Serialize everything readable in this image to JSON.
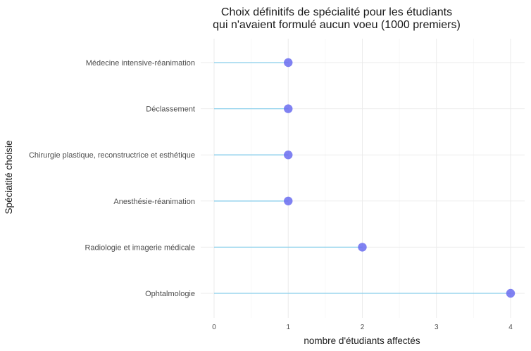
{
  "chart_data": {
    "type": "lollipop",
    "title_line1": "Choix définitifs de spécialité pour les étudiants",
    "title_line2": "qui n'avaient formulé aucun voeu (1000 premiers)",
    "xlabel": "nombre d'étudiants affectés",
    "ylabel": "Spéciatité choisie",
    "xlim": [
      0,
      4
    ],
    "x_ticks": [
      "0",
      "1",
      "2",
      "3",
      "4"
    ],
    "grid": true,
    "categories": [
      "Médecine intensive-réanimation",
      "Déclassement",
      "Chirurgie plastique, reconstructrice et esthétique",
      "Anesthésie-réanimation",
      "Radiologie et imagerie médicale",
      "Ophtalmologie"
    ],
    "values": [
      1,
      1,
      1,
      1,
      2,
      4
    ],
    "colors": {
      "stem": "#87ceeb",
      "point": "#6a6cf0",
      "point_opacity": 0.85
    }
  }
}
